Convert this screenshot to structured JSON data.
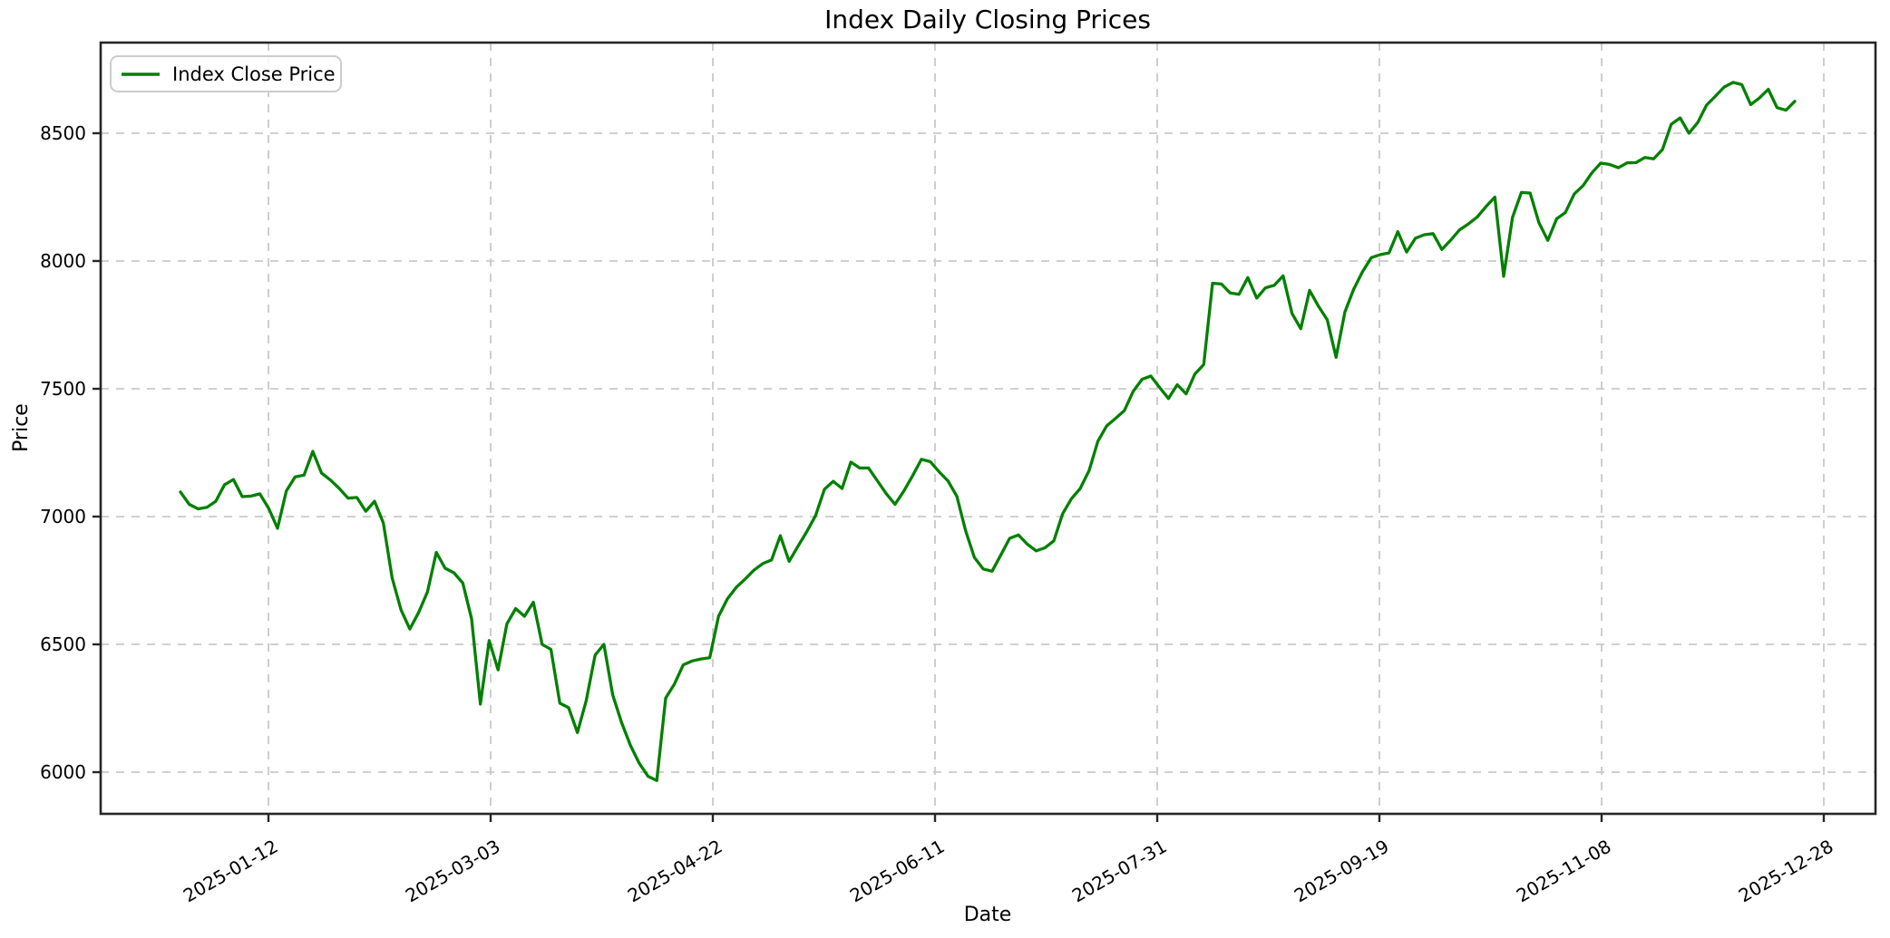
{
  "chart_data": {
    "type": "line",
    "title": "Index Daily Closing Prices",
    "xlabel": "Date",
    "ylabel": "Price",
    "legend": [
      "Index Close Price"
    ],
    "legend_position": "upper left",
    "grid": true,
    "grid_style": "dashed",
    "line_color": "#008000",
    "background_color": "#ffffff",
    "x_tick_labels": [
      "2025-01-12",
      "2025-03-03",
      "2025-04-22",
      "2025-06-11",
      "2025-07-31",
      "2025-09-19",
      "2025-11-08",
      "2025-12-28"
    ],
    "y_ticks": [
      6000,
      6500,
      7000,
      7500,
      8000,
      8500
    ],
    "ylim": [
      5830,
      8900
    ],
    "series": [
      {
        "name": "Index Close Price",
        "values": [
          7096,
          7048,
          7030,
          7036,
          7060,
          7125,
          7145,
          7078,
          7080,
          7089,
          7032,
          6954,
          7100,
          7155,
          7162,
          7255,
          7170,
          7143,
          7110,
          7072,
          7075,
          7021,
          7060,
          6975,
          6760,
          6635,
          6560,
          6625,
          6705,
          6860,
          6798,
          6780,
          6740,
          6600,
          6266,
          6515,
          6400,
          6580,
          6640,
          6610,
          6665,
          6500,
          6480,
          6270,
          6252,
          6155,
          6280,
          6458,
          6500,
          6302,
          6195,
          6105,
          6035,
          5984,
          5967,
          6290,
          6345,
          6420,
          6435,
          6443,
          6448,
          6610,
          6678,
          6723,
          6755,
          6790,
          6816,
          6830,
          6925,
          6825,
          6884,
          6941,
          7004,
          7107,
          7138,
          7110,
          7213,
          7190,
          7190,
          7140,
          7090,
          7048,
          7100,
          7160,
          7224,
          7215,
          7175,
          7140,
          7080,
          6945,
          6840,
          6795,
          6786,
          6850,
          6915,
          6928,
          6892,
          6866,
          6878,
          6905,
          7011,
          7070,
          7110,
          7180,
          7295,
          7355,
          7384,
          7415,
          7490,
          7537,
          7550,
          7505,
          7462,
          7516,
          7480,
          7558,
          7595,
          7913,
          7910,
          7875,
          7870,
          7935,
          7855,
          7895,
          7905,
          7942,
          7795,
          7735,
          7885,
          7823,
          7770,
          7623,
          7800,
          7890,
          7958,
          8013,
          8025,
          8032,
          8115,
          8035,
          8089,
          8103,
          8107,
          8045,
          8082,
          8122,
          8145,
          8172,
          8213,
          8250,
          7940,
          8170,
          8268,
          8266,
          8150,
          8081,
          8165,
          8190,
          8262,
          8295,
          8345,
          8383,
          8378,
          8365,
          8384,
          8385,
          8405,
          8400,
          8436,
          8535,
          8560,
          8500,
          8542,
          8610,
          8645,
          8681,
          8699,
          8690,
          8612,
          8638,
          8672,
          8600,
          8590,
          8625
        ]
      }
    ]
  }
}
